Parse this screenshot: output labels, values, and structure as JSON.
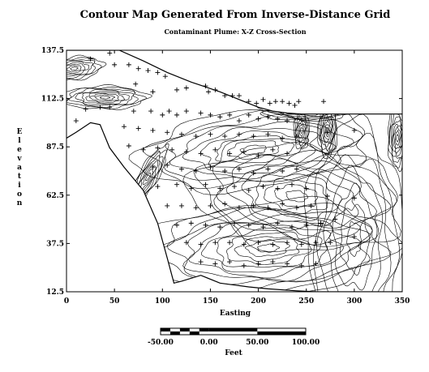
{
  "chart_data": {
    "type": "contour",
    "title": "Contour Map Generated From Inverse-Distance Grid",
    "subtitle": "Contaminant Plume: X-Z Cross-Section",
    "xlabel": "Easting",
    "ylabel": "Elevation",
    "xlim": [
      0,
      350
    ],
    "ylim": [
      12.5,
      137.5
    ],
    "x_ticks": [
      "0",
      "50",
      "100",
      "150",
      "200",
      "250",
      "300",
      "350"
    ],
    "y_ticks": [
      "12.5",
      "37.5",
      "62.5",
      "87.5",
      "112.5",
      "137.5"
    ],
    "grid": false,
    "scale_bar": {
      "unit_label": "Feet",
      "labels": [
        "-50.00",
        "0.00",
        "50.00",
        "100.00"
      ],
      "range": [
        -50,
        100
      ]
    },
    "surface_profile": [
      [
        0,
        92
      ],
      [
        10,
        95
      ],
      [
        25,
        100
      ],
      [
        35,
        99
      ],
      [
        45,
        87
      ],
      [
        60,
        77
      ],
      [
        80,
        65
      ],
      [
        95,
        48
      ],
      [
        105,
        30
      ],
      [
        112,
        17
      ],
      [
        120,
        18
      ],
      [
        140,
        21
      ],
      [
        160,
        17
      ],
      [
        175,
        16
      ],
      [
        190,
        15
      ],
      [
        210,
        14
      ],
      [
        240,
        13
      ],
      [
        260,
        12.5
      ],
      [
        350,
        12.5
      ]
    ],
    "top_boundary": [
      [
        0,
        137.5
      ],
      [
        55,
        137.5
      ],
      [
        80,
        132
      ],
      [
        105,
        126
      ],
      [
        130,
        121
      ],
      [
        160,
        116
      ],
      [
        185,
        111
      ],
      [
        200,
        108
      ],
      [
        215,
        106
      ],
      [
        230,
        105
      ],
      [
        245,
        104.5
      ],
      [
        270,
        104.5
      ],
      [
        300,
        104.5
      ],
      [
        350,
        104.5
      ]
    ],
    "samples": [
      [
        25,
        133
      ],
      [
        45,
        136
      ],
      [
        50,
        130
      ],
      [
        65,
        130
      ],
      [
        75,
        128
      ],
      [
        85,
        127
      ],
      [
        95,
        126
      ],
      [
        103,
        124
      ],
      [
        72,
        120
      ],
      [
        90,
        116
      ],
      [
        115,
        117
      ],
      [
        125,
        118
      ],
      [
        145,
        119
      ],
      [
        148,
        116
      ],
      [
        155,
        117
      ],
      [
        165,
        114
      ],
      [
        173,
        114
      ],
      [
        180,
        114
      ],
      [
        190,
        111
      ],
      [
        198,
        110
      ],
      [
        205,
        112
      ],
      [
        212,
        110
      ],
      [
        218,
        111
      ],
      [
        225,
        111
      ],
      [
        232,
        110
      ],
      [
        238,
        109
      ],
      [
        242,
        111
      ],
      [
        268,
        111
      ],
      [
        35,
        108
      ],
      [
        45,
        108
      ],
      [
        20,
        107
      ],
      [
        10,
        101
      ],
      [
        70,
        106
      ],
      [
        88,
        106
      ],
      [
        100,
        104
      ],
      [
        107,
        106
      ],
      [
        115,
        104
      ],
      [
        125,
        106
      ],
      [
        140,
        105
      ],
      [
        150,
        104
      ],
      [
        160,
        103
      ],
      [
        170,
        104
      ],
      [
        180,
        101
      ],
      [
        190,
        104
      ],
      [
        200,
        102
      ],
      [
        210,
        103
      ],
      [
        220,
        102
      ],
      [
        230,
        101
      ],
      [
        60,
        98
      ],
      [
        75,
        97
      ],
      [
        90,
        96
      ],
      [
        105,
        95
      ],
      [
        120,
        94
      ],
      [
        135,
        93
      ],
      [
        150,
        94
      ],
      [
        165,
        93
      ],
      [
        180,
        94
      ],
      [
        195,
        93
      ],
      [
        210,
        94
      ],
      [
        225,
        92
      ],
      [
        240,
        93
      ],
      [
        272,
        95
      ],
      [
        300,
        96
      ],
      [
        65,
        88
      ],
      [
        80,
        86
      ],
      [
        95,
        87
      ],
      [
        110,
        86
      ],
      [
        125,
        85
      ],
      [
        140,
        84
      ],
      [
        155,
        86
      ],
      [
        170,
        84
      ],
      [
        185,
        85
      ],
      [
        200,
        83
      ],
      [
        215,
        86
      ],
      [
        230,
        84
      ],
      [
        90,
        77
      ],
      [
        105,
        78
      ],
      [
        120,
        76
      ],
      [
        135,
        75
      ],
      [
        150,
        77
      ],
      [
        165,
        75
      ],
      [
        180,
        76
      ],
      [
        195,
        74
      ],
      [
        210,
        76
      ],
      [
        225,
        75
      ],
      [
        240,
        76
      ],
      [
        95,
        67
      ],
      [
        115,
        68
      ],
      [
        130,
        66
      ],
      [
        145,
        68
      ],
      [
        160,
        66
      ],
      [
        175,
        67
      ],
      [
        190,
        65
      ],
      [
        205,
        67
      ],
      [
        220,
        66
      ],
      [
        235,
        68
      ],
      [
        250,
        66
      ],
      [
        105,
        57
      ],
      [
        120,
        57
      ],
      [
        135,
        56
      ],
      [
        150,
        57
      ],
      [
        165,
        58
      ],
      [
        180,
        56
      ],
      [
        195,
        57
      ],
      [
        210,
        56
      ],
      [
        225,
        58
      ],
      [
        240,
        56
      ],
      [
        255,
        57
      ],
      [
        272,
        62
      ],
      [
        300,
        61
      ],
      [
        115,
        47
      ],
      [
        130,
        48
      ],
      [
        145,
        47
      ],
      [
        160,
        46
      ],
      [
        175,
        48
      ],
      [
        190,
        47
      ],
      [
        205,
        46
      ],
      [
        220,
        48
      ],
      [
        235,
        46
      ],
      [
        250,
        47
      ],
      [
        265,
        48
      ],
      [
        280,
        50
      ],
      [
        125,
        38
      ],
      [
        140,
        37
      ],
      [
        155,
        38
      ],
      [
        170,
        38
      ],
      [
        185,
        37
      ],
      [
        200,
        38
      ],
      [
        215,
        37
      ],
      [
        230,
        38
      ],
      [
        245,
        37
      ],
      [
        260,
        38
      ],
      [
        275,
        38
      ],
      [
        300,
        41
      ],
      [
        140,
        28
      ],
      [
        155,
        27
      ],
      [
        170,
        28
      ],
      [
        185,
        26
      ],
      [
        200,
        27
      ],
      [
        215,
        28
      ],
      [
        230,
        27
      ],
      [
        245,
        26
      ],
      [
        260,
        27
      ]
    ],
    "plume_lobes": [
      {
        "x": 210,
        "y": 35,
        "rx": 130,
        "ry": 24,
        "rings": 12,
        "rot": -4
      },
      {
        "x": 240,
        "y": 62,
        "rx": 110,
        "ry": 28,
        "rings": 10,
        "rot": 8
      },
      {
        "x": 195,
        "y": 86,
        "rx": 120,
        "ry": 20,
        "rings": 9,
        "rot": -6
      },
      {
        "x": 272,
        "y": 96,
        "rx": 10,
        "ry": 14,
        "rings": 9,
        "rot": 0
      },
      {
        "x": 245,
        "y": 96,
        "rx": 8,
        "ry": 10,
        "rings": 7,
        "rot": 0
      },
      {
        "x": 345,
        "y": 92,
        "rx": 10,
        "ry": 16,
        "rings": 9,
        "rot": 0
      },
      {
        "x": 40,
        "y": 113,
        "rx": 44,
        "ry": 6,
        "rings": 9,
        "rot": 0
      },
      {
        "x": 8,
        "y": 128,
        "rx": 30,
        "ry": 6,
        "rings": 8,
        "rot": -8
      },
      {
        "x": 85,
        "y": 72,
        "rx": 10,
        "ry": 18,
        "rings": 8,
        "rot": 30
      },
      {
        "x": 250,
        "y": 106,
        "rx": 50,
        "ry": 5,
        "rings": 7,
        "rot": 0
      },
      {
        "x": 300,
        "y": 40,
        "rx": 50,
        "ry": 60,
        "rings": 7,
        "rot": 0
      }
    ]
  }
}
